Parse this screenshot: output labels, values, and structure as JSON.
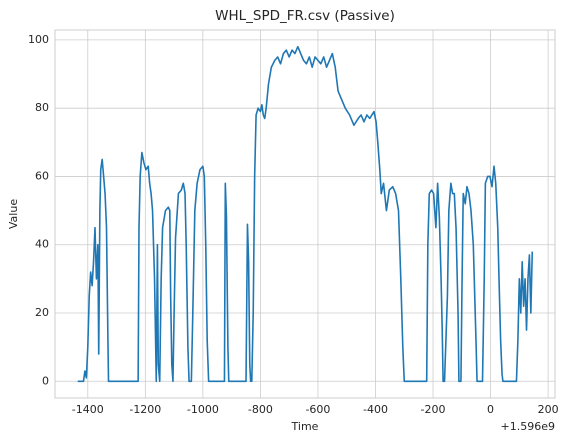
{
  "chart_data": {
    "type": "line",
    "title": "WHL_SPD_FR.csv (Passive)",
    "x_label": "Time",
    "y_label": "Value",
    "x_offset_label": "+1.596e9",
    "color": "#1f77b4",
    "grid": true,
    "xlim": [
      -1514,
      224
    ],
    "ylim": [
      -4.9,
      102.9
    ],
    "xticks": [
      -1400,
      -1200,
      -1000,
      -800,
      -600,
      -400,
      -200,
      0,
      200
    ],
    "yticks": [
      0,
      20,
      40,
      60,
      80,
      100
    ],
    "x": [
      -1435,
      -1415,
      -1410,
      -1405,
      -1400,
      -1395,
      -1390,
      -1385,
      -1380,
      -1375,
      -1370,
      -1365,
      -1362,
      -1358,
      -1355,
      -1350,
      -1345,
      -1340,
      -1335,
      -1330,
      -1328,
      -1300,
      -1260,
      -1225,
      -1222,
      -1218,
      -1212,
      -1205,
      -1198,
      -1190,
      -1185,
      -1180,
      -1175,
      -1168,
      -1162,
      -1158,
      -1155,
      -1150,
      -1145,
      -1140,
      -1130,
      -1120,
      -1115,
      -1112,
      -1108,
      -1104,
      -1100,
      -1095,
      -1085,
      -1075,
      -1068,
      -1062,
      -1058,
      -1052,
      -1048,
      -1040,
      -1035,
      -1028,
      -1020,
      -1010,
      -1000,
      -995,
      -990,
      -985,
      -980,
      -960,
      -940,
      -925,
      -922,
      -918,
      -913,
      -910,
      -880,
      -855,
      -850,
      -845,
      -841,
      -837,
      -834,
      -830,
      -825,
      -820,
      -815,
      -808,
      -800,
      -795,
      -790,
      -785,
      -780,
      -772,
      -762,
      -750,
      -740,
      -730,
      -720,
      -710,
      -700,
      -690,
      -680,
      -670,
      -660,
      -650,
      -640,
      -630,
      -620,
      -610,
      -600,
      -590,
      -580,
      -570,
      -560,
      -550,
      -540,
      -530,
      -520,
      -505,
      -490,
      -475,
      -460,
      -450,
      -440,
      -430,
      -420,
      -405,
      -398,
      -392,
      -385,
      -380,
      -372,
      -362,
      -352,
      -340,
      -330,
      -320,
      -312,
      -305,
      -300,
      -290,
      -240,
      -222,
      -218,
      -213,
      -205,
      -198,
      -190,
      -184,
      -178,
      -172,
      -168,
      -165,
      -160,
      -150,
      -145,
      -138,
      -132,
      -126,
      -120,
      -113,
      -110,
      -103,
      -99,
      -95,
      -88,
      -82,
      -75,
      -68,
      -60,
      -55,
      -50,
      -47,
      -35,
      -28,
      -22,
      -18,
      -10,
      -2,
      5,
      12,
      18,
      25,
      30,
      35,
      40,
      43,
      60,
      80,
      90,
      95,
      100,
      105,
      110,
      115,
      120,
      125,
      130,
      135,
      140,
      145
    ],
    "values": [
      0,
      0,
      3,
      1,
      10,
      25,
      32,
      28,
      35,
      45,
      30,
      40,
      8,
      50,
      62,
      65,
      60,
      55,
      45,
      12,
      0,
      0,
      0,
      0,
      45,
      60,
      67,
      64,
      62,
      63,
      58,
      55,
      50,
      30,
      0,
      40,
      5,
      0,
      30,
      45,
      50,
      51,
      50,
      25,
      5,
      0,
      20,
      42,
      55,
      56,
      58,
      55,
      40,
      10,
      0,
      0,
      20,
      50,
      58,
      62,
      63,
      60,
      40,
      12,
      0,
      0,
      0,
      0,
      58,
      48,
      10,
      0,
      0,
      0,
      0,
      46,
      35,
      5,
      0,
      0,
      20,
      60,
      78,
      80,
      79,
      81,
      78,
      77,
      80,
      87,
      92,
      94,
      95,
      93,
      96,
      97,
      95,
      97,
      96,
      98,
      96,
      94,
      93,
      95,
      92,
      95,
      94,
      93,
      95,
      92,
      94,
      96,
      92,
      85,
      83,
      80,
      78,
      75,
      77,
      78,
      76,
      78,
      77,
      79,
      76,
      70,
      62,
      55,
      58,
      50,
      56,
      57,
      55,
      50,
      30,
      10,
      0,
      0,
      0,
      0,
      40,
      55,
      56,
      55,
      45,
      58,
      48,
      30,
      15,
      0,
      0,
      25,
      50,
      58,
      55,
      55,
      45,
      20,
      0,
      0,
      30,
      55,
      52,
      57,
      55,
      50,
      40,
      25,
      10,
      0,
      0,
      0,
      30,
      58,
      60,
      60,
      57,
      63,
      58,
      45,
      28,
      12,
      2,
      0,
      0,
      0,
      0,
      12,
      30,
      20,
      35,
      22,
      30,
      15,
      30,
      37,
      20,
      38
    ]
  }
}
